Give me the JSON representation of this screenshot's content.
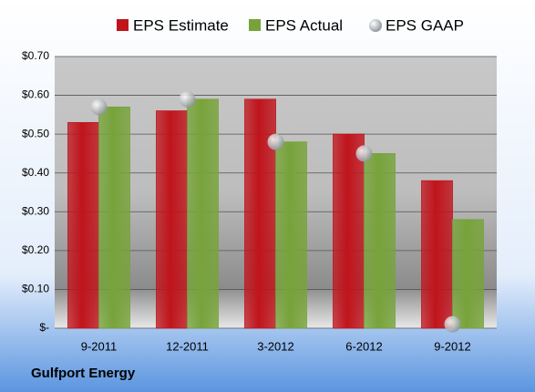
{
  "chart_data": {
    "type": "bar",
    "source": "Gulfport Energy",
    "categories": [
      "9-2011",
      "12-2011",
      "3-2012",
      "6-2012",
      "9-2012"
    ],
    "series": [
      {
        "name": "EPS Estimate",
        "color": "#c0141c",
        "type": "bar",
        "values": [
          0.53,
          0.56,
          0.59,
          0.5,
          0.38
        ]
      },
      {
        "name": "EPS Actual",
        "color": "#77a33a",
        "type": "bar",
        "values": [
          0.57,
          0.59,
          0.48,
          0.45,
          0.28
        ]
      },
      {
        "name": "EPS GAAP",
        "color": "#b8bcc4",
        "type": "scatter",
        "values": [
          0.57,
          0.59,
          0.48,
          0.45,
          0.01
        ]
      }
    ],
    "ylim": [
      0,
      0.7
    ],
    "yticks": [
      {
        "value": 0,
        "label": "$-"
      },
      {
        "value": 0.1,
        "label": "$0.10"
      },
      {
        "value": 0.2,
        "label": "$0.20"
      },
      {
        "value": 0.3,
        "label": "$0.30"
      },
      {
        "value": 0.4,
        "label": "$0.40"
      },
      {
        "value": 0.5,
        "label": "$0.50"
      },
      {
        "value": 0.6,
        "label": "$0.60"
      },
      {
        "value": 0.7,
        "label": "$0.70"
      }
    ],
    "grid": true,
    "legend": "top"
  }
}
